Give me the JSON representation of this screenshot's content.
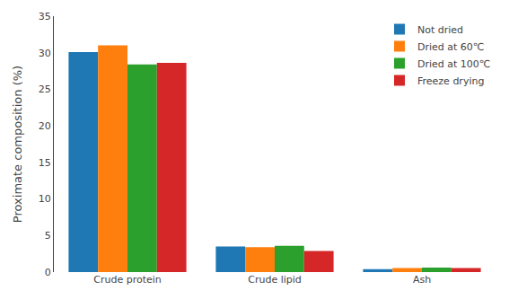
{
  "chart_data": {
    "type": "bar",
    "categories": [
      "Crude protein",
      "Crude lipid",
      "Ash"
    ],
    "series": [
      {
        "name": "Not dried",
        "values": [
          30.1,
          3.5,
          0.4
        ]
      },
      {
        "name": "Dried at 60℃",
        "values": [
          31.0,
          3.4,
          0.55
        ]
      },
      {
        "name": "Dried at 100℃",
        "values": [
          28.4,
          3.6,
          0.6
        ]
      },
      {
        "name": "Freeze drying",
        "values": [
          28.6,
          2.9,
          0.55
        ]
      }
    ],
    "ylabel": "Proximate composition (%)",
    "ylim": [
      0,
      35
    ],
    "yticks": [
      0,
      5,
      10,
      15,
      20,
      25,
      30,
      35
    ],
    "grid": false,
    "legend": "upper right"
  }
}
